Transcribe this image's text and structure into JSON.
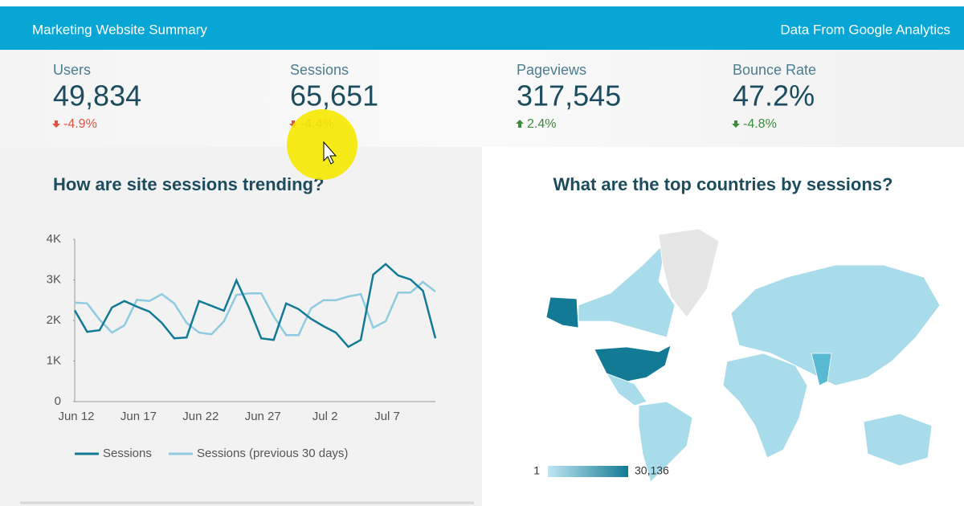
{
  "header": {
    "title": "Marketing Website Summary",
    "source": "Data From Google Analytics"
  },
  "kpis": [
    {
      "label": "Users",
      "value": "49,834",
      "change": "-4.9%",
      "direction": "down",
      "color": "#e0533f"
    },
    {
      "label": "Sessions",
      "value": "65,651",
      "change": "-4.4%",
      "direction": "down",
      "color": "#e0533f"
    },
    {
      "label": "Pageviews",
      "value": "317,545",
      "change": "2.4%",
      "direction": "up",
      "color": "#3a8d3a"
    },
    {
      "label": "Bounce Rate",
      "value": "47.2%",
      "change": "-4.8%",
      "direction": "down",
      "color": "#3a8d3a"
    }
  ],
  "chart_data": {
    "type": "line",
    "title": "How are site sessions trending?",
    "categories": [
      "Jun 12",
      null,
      null,
      null,
      null,
      "Jun 17",
      null,
      null,
      null,
      null,
      "Jun 22",
      null,
      null,
      null,
      null,
      "Jun 27",
      null,
      null,
      null,
      null,
      "Jul 2",
      null,
      null,
      null,
      null,
      "Jul 7",
      null,
      null,
      null,
      null
    ],
    "series": [
      {
        "name": "Sessions",
        "color": "#137a95",
        "values": [
          2250,
          1720,
          1760,
          2320,
          2480,
          2340,
          2220,
          1940,
          1560,
          1580,
          2480,
          2360,
          2240,
          2990,
          2320,
          1560,
          1520,
          2420,
          2280,
          2040,
          1860,
          1700,
          1350,
          1520,
          3130,
          3390,
          3110,
          3010,
          2730,
          1560
        ]
      },
      {
        "name": "Sessions (previous 30 days)",
        "color": "#8fcbe0",
        "values": [
          2440,
          2420,
          2020,
          1700,
          1880,
          2510,
          2480,
          2650,
          2420,
          1940,
          1700,
          1660,
          1980,
          2630,
          2670,
          2670,
          2100,
          1640,
          1640,
          2300,
          2500,
          2500,
          2590,
          2650,
          1820,
          1980,
          2690,
          2690,
          2950,
          2710
        ]
      }
    ],
    "ylim": [
      0,
      4000
    ],
    "yticks": [
      0,
      {
        "value": 1000,
        "label": "1K"
      },
      {
        "value": 2000,
        "label": "2K"
      },
      {
        "value": 3000,
        "label": "3K"
      },
      {
        "value": 4000,
        "label": "4K"
      }
    ]
  },
  "map": {
    "title": "What are the top countries by sessions?",
    "legend_min": "1",
    "legend_max": "30,136"
  }
}
